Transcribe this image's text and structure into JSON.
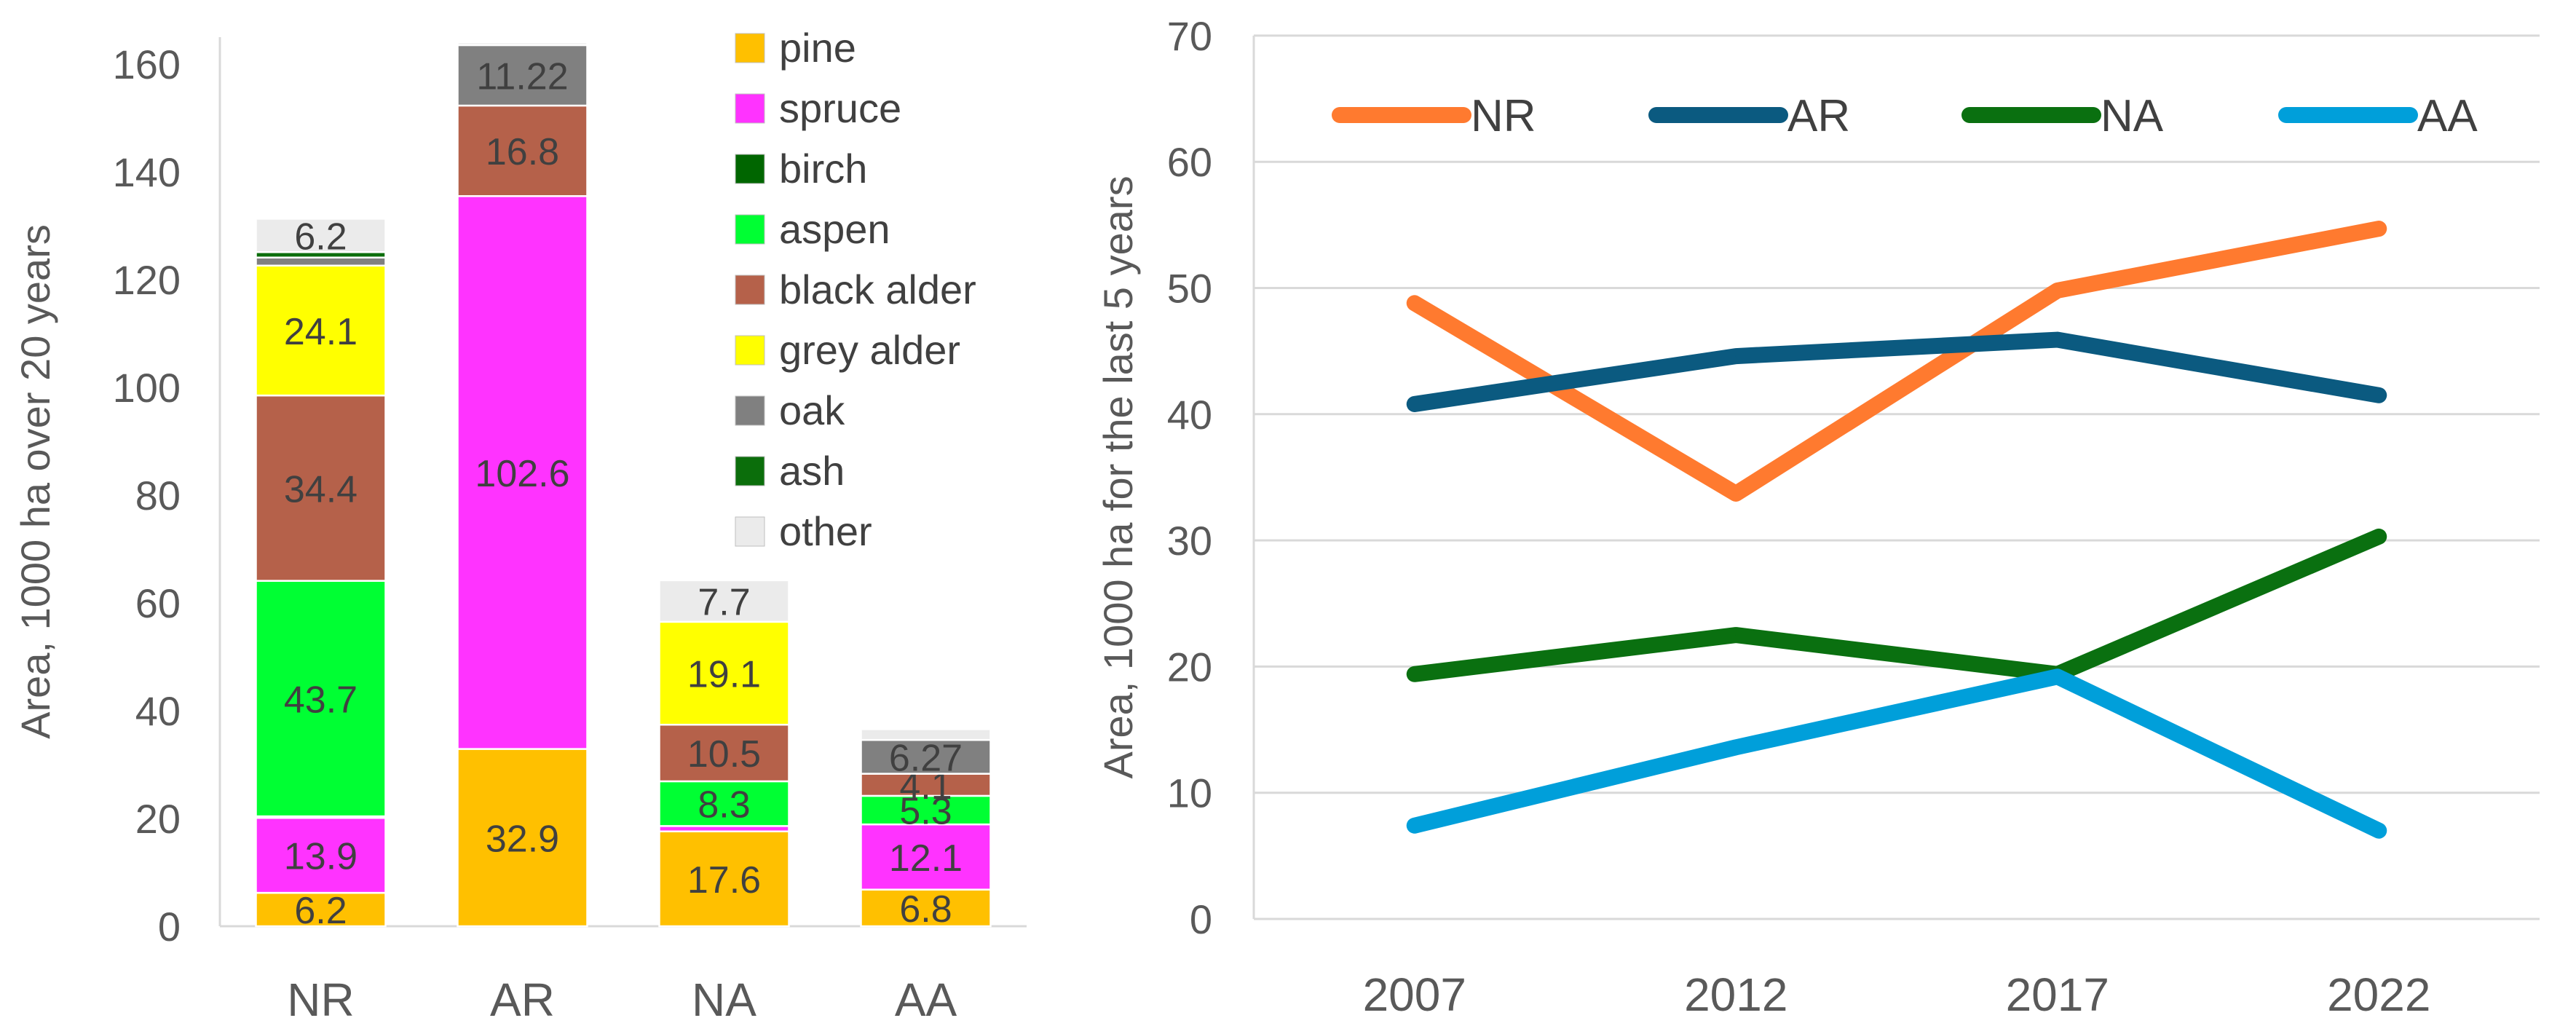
{
  "chart_data": [
    {
      "type": "bar",
      "stacked": true,
      "categories": [
        "NR",
        "AR",
        "NA",
        "AA"
      ],
      "ylabel": "Area, 1000 ha over 20 years",
      "ylim": [
        0,
        165
      ],
      "yticks": [
        0,
        20,
        40,
        60,
        80,
        100,
        120,
        140,
        160
      ],
      "legend_position": "top-right",
      "series": [
        {
          "name": "pine",
          "color": "#FFC000",
          "values": [
            6.2,
            32.9,
            17.6,
            6.8
          ],
          "labels": [
            "6.2",
            "32.9",
            "17.6",
            "6.8"
          ]
        },
        {
          "name": "spruce",
          "color": "#FF33FF",
          "values": [
            13.9,
            102.6,
            1.0,
            12.1
          ],
          "labels": [
            "13.9",
            "102.6",
            "",
            "12.1"
          ]
        },
        {
          "name": "birch",
          "color": "#006600",
          "values": [
            0.3,
            0,
            0,
            0
          ],
          "labels": [
            "",
            "",
            "",
            ""
          ]
        },
        {
          "name": "aspen",
          "color": "#00FF33",
          "values": [
            43.7,
            0,
            8.3,
            5.3
          ],
          "labels": [
            "43.7",
            "",
            "8.3",
            "5.3"
          ]
        },
        {
          "name": "black alder",
          "color": "#B5614A",
          "values": [
            34.4,
            16.8,
            10.5,
            4.1
          ],
          "labels": [
            "34.4",
            "16.8",
            "10.5",
            "4.1"
          ]
        },
        {
          "name": "grey alder",
          "color": "#FFFF00",
          "values": [
            24.1,
            0,
            19.1,
            0
          ],
          "labels": [
            "24.1",
            "",
            "19.1",
            ""
          ]
        },
        {
          "name": "oak",
          "color": "#808080",
          "values": [
            1.5,
            11.22,
            0,
            6.27
          ],
          "labels": [
            "",
            "11.22",
            "",
            "6.27"
          ]
        },
        {
          "name": "ash",
          "color": "#0B6E0B",
          "values": [
            1.0,
            0,
            0,
            0
          ],
          "labels": [
            "",
            "",
            "",
            ""
          ]
        },
        {
          "name": "other",
          "color": "#EBEBEB",
          "values": [
            6.2,
            0.5,
            7.7,
            2.0
          ],
          "labels": [
            "6.2",
            "",
            "7.7",
            ""
          ]
        }
      ]
    },
    {
      "type": "line",
      "x": [
        "2007",
        "2012",
        "2017",
        "2022"
      ],
      "ylabel": "Area, 1000 ha for the last 5 years",
      "ylim": [
        0,
        70
      ],
      "yticks": [
        0,
        10,
        20,
        30,
        40,
        50,
        60,
        70
      ],
      "legend_position": "top",
      "series": [
        {
          "name": "NR",
          "color": "#FF7A2F",
          "values": [
            48.8,
            33.7,
            49.8,
            54.7
          ]
        },
        {
          "name": "AR",
          "color": "#0B5A80",
          "values": [
            40.8,
            44.6,
            45.9,
            41.5
          ]
        },
        {
          "name": "NA",
          "color": "#0A7010",
          "values": [
            19.4,
            22.5,
            19.4,
            30.3
          ]
        },
        {
          "name": "AA",
          "color": "#009FDA",
          "values": [
            7.4,
            13.6,
            19.2,
            7.0
          ]
        }
      ]
    }
  ]
}
